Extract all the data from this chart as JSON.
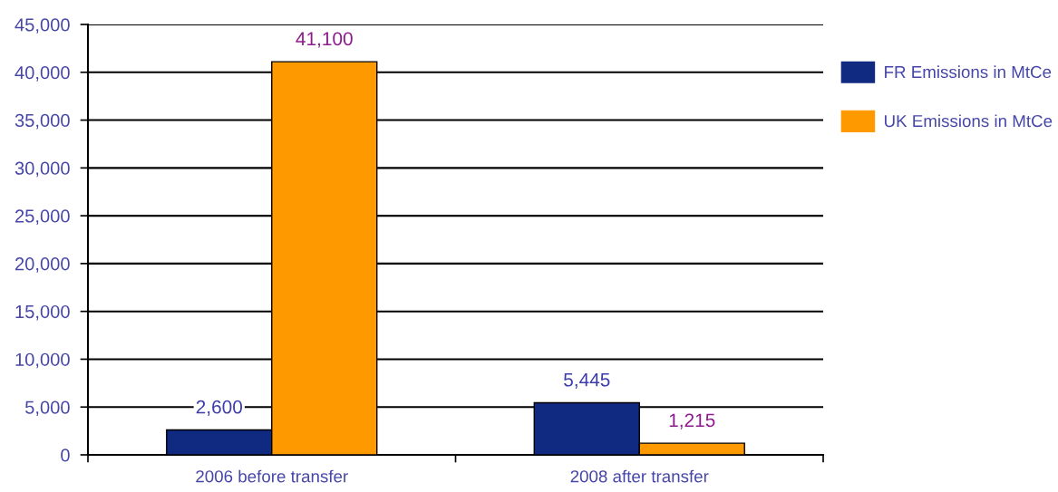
{
  "chart_data": {
    "type": "bar",
    "categories": [
      "2006 before transfer",
      "2008 after transfer"
    ],
    "series": [
      {
        "name": "FR Emissions in MtCe",
        "color": "#102a82",
        "values": [
          2600,
          5445
        ],
        "value_labels": [
          "2,600",
          "5,445"
        ]
      },
      {
        "name": "UK Emissions in MtCe",
        "color": "#ff9900",
        "values": [
          41100,
          1215
        ],
        "value_labels": [
          "41,100",
          "1,215"
        ]
      }
    ],
    "ylim": [
      0,
      45000
    ],
    "yticks": [
      0,
      {
        "value": 5000,
        "label": "5,000"
      },
      {
        "value": 10000,
        "label": "10,000"
      },
      {
        "value": 15000,
        "label": "15,000"
      },
      {
        "value": 20000,
        "label": "20,000"
      },
      {
        "value": 25000,
        "label": "25,000"
      },
      {
        "value": 30000,
        "label": "30,000"
      },
      {
        "value": 35000,
        "label": "35,000"
      },
      {
        "value": 40000,
        "label": "40,000"
      },
      {
        "value": 45000,
        "label": "45,000"
      }
    ],
    "grid": "y",
    "legend": "right"
  }
}
